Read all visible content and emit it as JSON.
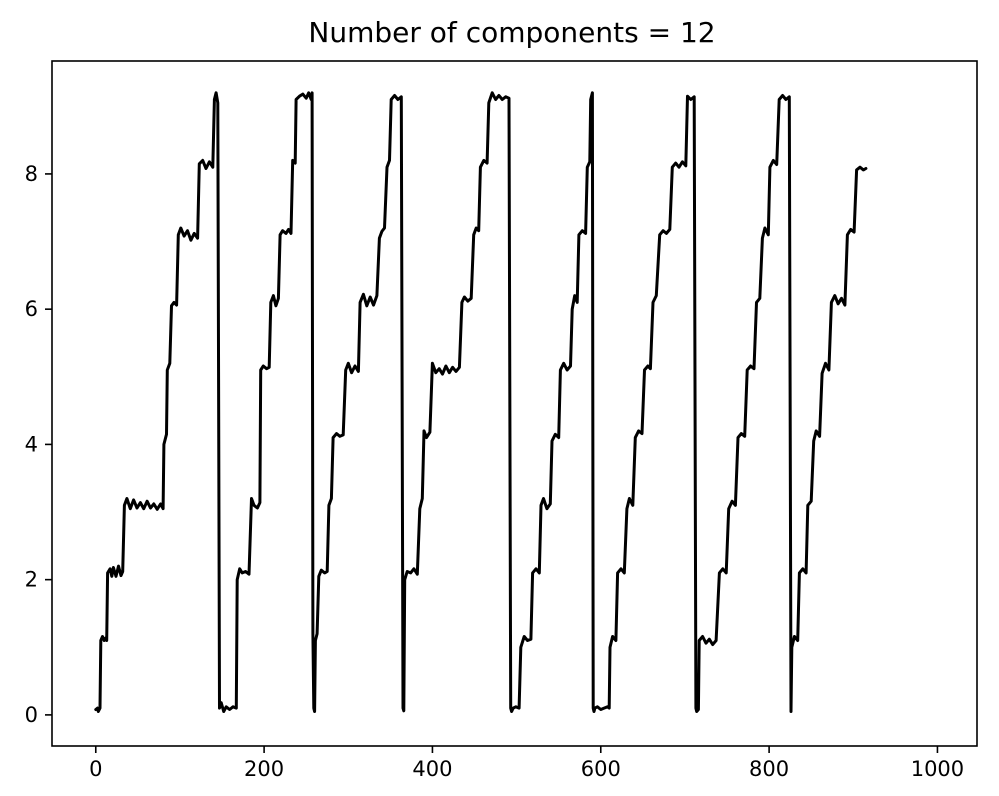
{
  "chart_data": {
    "type": "line",
    "title": "Number of components = 12",
    "xlabel": "",
    "ylabel": "",
    "xlim": [
      -52,
      1047
    ],
    "ylim": [
      -0.46,
      9.67
    ],
    "xticks": [
      0,
      200,
      400,
      600,
      800,
      1000
    ],
    "yticks": [
      0,
      2,
      4,
      6,
      8
    ],
    "xtick_labels": [
      "0",
      "200",
      "400",
      "600",
      "800",
      "1000"
    ],
    "ytick_labels": [
      "0",
      "2",
      "4",
      "6",
      "8"
    ],
    "grid": false,
    "line_color": "#000000",
    "series": [
      {
        "points": [
          [
            0,
            0.08
          ],
          [
            2,
            0.1
          ],
          [
            3,
            0.05
          ],
          [
            5,
            0.1
          ],
          [
            6,
            1.1
          ],
          [
            8,
            1.16
          ],
          [
            10,
            1.1
          ],
          [
            12,
            1.14
          ],
          [
            13,
            1.1
          ],
          [
            14,
            2.1
          ],
          [
            17,
            2.16
          ],
          [
            19,
            2.05
          ],
          [
            21,
            2.18
          ],
          [
            24,
            2.05
          ],
          [
            27,
            2.2
          ],
          [
            30,
            2.06
          ],
          [
            32,
            2.12
          ],
          [
            34,
            3.1
          ],
          [
            37,
            3.2
          ],
          [
            41,
            3.05
          ],
          [
            45,
            3.18
          ],
          [
            49,
            3.06
          ],
          [
            53,
            3.14
          ],
          [
            57,
            3.05
          ],
          [
            61,
            3.16
          ],
          [
            65,
            3.06
          ],
          [
            69,
            3.12
          ],
          [
            73,
            3.04
          ],
          [
            77,
            3.12
          ],
          [
            80,
            3.05
          ],
          [
            81,
            4.0
          ],
          [
            84,
            4.15
          ],
          [
            85,
            5.1
          ],
          [
            88,
            5.2
          ],
          [
            90,
            6.05
          ],
          [
            93,
            6.1
          ],
          [
            96,
            6.06
          ],
          [
            98,
            7.1
          ],
          [
            101,
            7.2
          ],
          [
            105,
            7.08
          ],
          [
            109,
            7.16
          ],
          [
            113,
            7.02
          ],
          [
            117,
            7.12
          ],
          [
            121,
            7.05
          ],
          [
            123,
            8.15
          ],
          [
            127,
            8.2
          ],
          [
            131,
            8.08
          ],
          [
            135,
            8.18
          ],
          [
            139,
            8.1
          ],
          [
            141,
            9.1
          ],
          [
            143,
            9.2
          ],
          [
            145,
            9.05
          ],
          [
            147,
            0.1
          ],
          [
            149,
            0.18
          ],
          [
            152,
            0.05
          ],
          [
            155,
            0.12
          ],
          [
            159,
            0.08
          ],
          [
            163,
            0.12
          ],
          [
            167,
            0.1
          ],
          [
            168,
            2.0
          ],
          [
            171,
            2.16
          ],
          [
            174,
            2.1
          ],
          [
            178,
            2.12
          ],
          [
            182,
            2.08
          ],
          [
            185,
            3.2
          ],
          [
            188,
            3.1
          ],
          [
            192,
            3.06
          ],
          [
            195,
            3.14
          ],
          [
            196,
            5.1
          ],
          [
            199,
            5.16
          ],
          [
            203,
            5.12
          ],
          [
            206,
            5.14
          ],
          [
            208,
            6.1
          ],
          [
            211,
            6.2
          ],
          [
            214,
            6.05
          ],
          [
            217,
            6.16
          ],
          [
            219,
            7.1
          ],
          [
            222,
            7.16
          ],
          [
            226,
            7.12
          ],
          [
            229,
            7.18
          ],
          [
            232,
            7.12
          ],
          [
            234,
            8.2
          ],
          [
            237,
            8.16
          ],
          [
            238,
            9.1
          ],
          [
            242,
            9.15
          ],
          [
            246,
            9.18
          ],
          [
            250,
            9.12
          ],
          [
            253,
            9.2
          ],
          [
            256,
            9.1
          ],
          [
            257,
            9.2
          ],
          [
            258,
            1.2
          ],
          [
            259,
            0.1
          ],
          [
            260,
            0.05
          ],
          [
            261,
            1.1
          ],
          [
            263,
            1.2
          ],
          [
            265,
            2.05
          ],
          [
            268,
            2.14
          ],
          [
            272,
            2.1
          ],
          [
            275,
            2.12
          ],
          [
            277,
            3.1
          ],
          [
            280,
            3.2
          ],
          [
            282,
            4.1
          ],
          [
            286,
            4.16
          ],
          [
            290,
            4.12
          ],
          [
            294,
            4.14
          ],
          [
            297,
            5.1
          ],
          [
            300,
            5.2
          ],
          [
            304,
            5.06
          ],
          [
            308,
            5.16
          ],
          [
            312,
            5.08
          ],
          [
            314,
            6.1
          ],
          [
            318,
            6.22
          ],
          [
            322,
            6.05
          ],
          [
            326,
            6.18
          ],
          [
            330,
            6.06
          ],
          [
            334,
            6.2
          ],
          [
            337,
            7.05
          ],
          [
            340,
            7.15
          ],
          [
            343,
            7.2
          ],
          [
            346,
            8.1
          ],
          [
            349,
            8.2
          ],
          [
            351,
            9.1
          ],
          [
            355,
            9.16
          ],
          [
            359,
            9.1
          ],
          [
            363,
            9.14
          ],
          [
            365,
            0.1
          ],
          [
            366,
            0.06
          ],
          [
            367,
            2.0
          ],
          [
            370,
            2.12
          ],
          [
            374,
            2.1
          ],
          [
            378,
            2.16
          ],
          [
            382,
            2.08
          ],
          [
            385,
            3.05
          ],
          [
            388,
            3.2
          ],
          [
            390,
            4.2
          ],
          [
            393,
            4.1
          ],
          [
            397,
            4.18
          ],
          [
            400,
            5.2
          ],
          [
            404,
            5.06
          ],
          [
            408,
            5.12
          ],
          [
            412,
            5.04
          ],
          [
            416,
            5.16
          ],
          [
            420,
            5.06
          ],
          [
            424,
            5.14
          ],
          [
            428,
            5.08
          ],
          [
            432,
            5.14
          ],
          [
            435,
            6.1
          ],
          [
            438,
            6.18
          ],
          [
            442,
            6.12
          ],
          [
            446,
            6.16
          ],
          [
            449,
            7.1
          ],
          [
            452,
            7.2
          ],
          [
            455,
            7.16
          ],
          [
            457,
            8.1
          ],
          [
            461,
            8.2
          ],
          [
            465,
            8.16
          ],
          [
            467,
            9.05
          ],
          [
            471,
            9.2
          ],
          [
            475,
            9.1
          ],
          [
            479,
            9.16
          ],
          [
            483,
            9.1
          ],
          [
            487,
            9.14
          ],
          [
            491,
            9.12
          ],
          [
            493,
            0.1
          ],
          [
            494,
            0.05
          ],
          [
            496,
            0.1
          ],
          [
            499,
            0.12
          ],
          [
            503,
            0.1
          ],
          [
            505,
            1.0
          ],
          [
            509,
            1.16
          ],
          [
            513,
            1.1
          ],
          [
            517,
            1.12
          ],
          [
            519,
            2.1
          ],
          [
            523,
            2.16
          ],
          [
            527,
            2.1
          ],
          [
            529,
            3.1
          ],
          [
            532,
            3.2
          ],
          [
            536,
            3.05
          ],
          [
            540,
            3.12
          ],
          [
            542,
            4.05
          ],
          [
            546,
            4.15
          ],
          [
            550,
            4.1
          ],
          [
            552,
            5.1
          ],
          [
            556,
            5.2
          ],
          [
            560,
            5.1
          ],
          [
            564,
            5.16
          ],
          [
            566,
            6.0
          ],
          [
            569,
            6.2
          ],
          [
            572,
            6.1
          ],
          [
            574,
            7.1
          ],
          [
            578,
            7.16
          ],
          [
            582,
            7.12
          ],
          [
            584,
            8.1
          ],
          [
            587,
            8.18
          ],
          [
            588,
            9.1
          ],
          [
            590,
            9.2
          ],
          [
            591,
            0.1
          ],
          [
            592,
            0.05
          ],
          [
            593,
            0.1
          ],
          [
            596,
            0.12
          ],
          [
            600,
            0.08
          ],
          [
            604,
            0.1
          ],
          [
            608,
            0.12
          ],
          [
            610,
            0.1
          ],
          [
            611,
            1.0
          ],
          [
            614,
            1.16
          ],
          [
            618,
            1.1
          ],
          [
            620,
            2.1
          ],
          [
            624,
            2.16
          ],
          [
            628,
            2.1
          ],
          [
            631,
            3.05
          ],
          [
            634,
            3.2
          ],
          [
            638,
            3.1
          ],
          [
            641,
            4.1
          ],
          [
            645,
            4.2
          ],
          [
            649,
            4.16
          ],
          [
            652,
            5.1
          ],
          [
            656,
            5.16
          ],
          [
            659,
            5.12
          ],
          [
            662,
            6.1
          ],
          [
            666,
            6.2
          ],
          [
            670,
            7.1
          ],
          [
            674,
            7.16
          ],
          [
            678,
            7.12
          ],
          [
            682,
            7.18
          ],
          [
            685,
            8.1
          ],
          [
            689,
            8.16
          ],
          [
            693,
            8.1
          ],
          [
            697,
            8.18
          ],
          [
            701,
            8.12
          ],
          [
            703,
            9.15
          ],
          [
            707,
            9.1
          ],
          [
            711,
            9.14
          ],
          [
            713,
            0.1
          ],
          [
            714,
            0.05
          ],
          [
            716,
            0.08
          ],
          [
            717,
            1.1
          ],
          [
            721,
            1.16
          ],
          [
            725,
            1.06
          ],
          [
            729,
            1.12
          ],
          [
            733,
            1.04
          ],
          [
            737,
            1.1
          ],
          [
            741,
            2.1
          ],
          [
            745,
            2.16
          ],
          [
            749,
            2.1
          ],
          [
            752,
            3.05
          ],
          [
            756,
            3.16
          ],
          [
            760,
            3.1
          ],
          [
            763,
            4.1
          ],
          [
            767,
            4.16
          ],
          [
            771,
            4.12
          ],
          [
            774,
            5.1
          ],
          [
            778,
            5.16
          ],
          [
            782,
            5.12
          ],
          [
            785,
            6.1
          ],
          [
            789,
            6.16
          ],
          [
            792,
            7.05
          ],
          [
            795,
            7.2
          ],
          [
            799,
            7.1
          ],
          [
            801,
            8.1
          ],
          [
            805,
            8.2
          ],
          [
            809,
            8.14
          ],
          [
            812,
            9.1
          ],
          [
            816,
            9.16
          ],
          [
            820,
            9.1
          ],
          [
            824,
            9.14
          ],
          [
            826,
            0.05
          ],
          [
            827,
            1.0
          ],
          [
            830,
            1.16
          ],
          [
            834,
            1.1
          ],
          [
            836,
            2.1
          ],
          [
            840,
            2.16
          ],
          [
            844,
            2.1
          ],
          [
            846,
            3.1
          ],
          [
            850,
            3.16
          ],
          [
            853,
            4.05
          ],
          [
            856,
            4.2
          ],
          [
            860,
            4.12
          ],
          [
            863,
            5.05
          ],
          [
            867,
            5.2
          ],
          [
            871,
            5.1
          ],
          [
            874,
            6.1
          ],
          [
            878,
            6.2
          ],
          [
            882,
            6.08
          ],
          [
            886,
            6.16
          ],
          [
            890,
            6.06
          ],
          [
            893,
            7.1
          ],
          [
            897,
            7.18
          ],
          [
            901,
            7.14
          ],
          [
            904,
            8.06
          ],
          [
            908,
            8.1
          ],
          [
            912,
            8.06
          ],
          [
            915,
            8.08
          ]
        ]
      }
    ]
  }
}
